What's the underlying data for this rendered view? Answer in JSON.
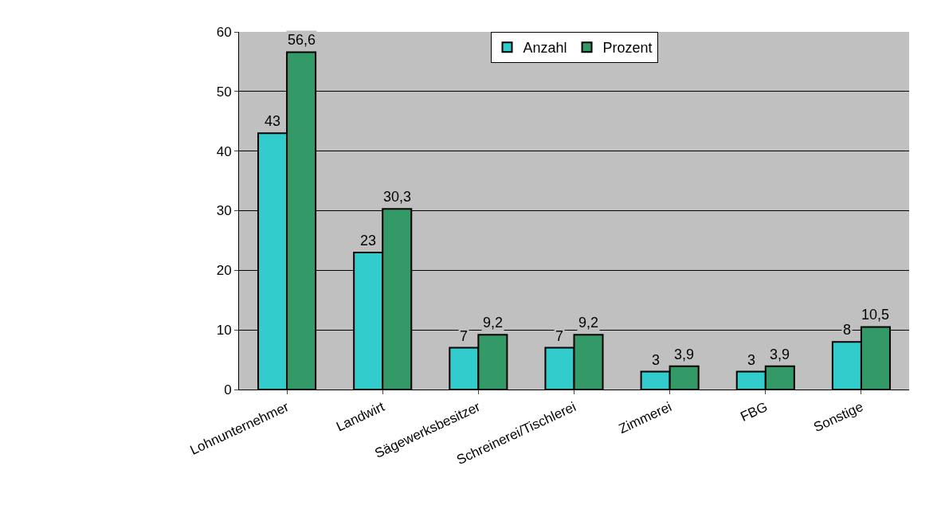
{
  "chart_data": {
    "type": "bar",
    "categories": [
      "Lohnunternehmer",
      "Landwirt",
      "Sägewerksbesitzer",
      "Schreinerei/Tischlerei",
      "Zimmerei",
      "FBG",
      "Sonstige"
    ],
    "series": [
      {
        "name": "Anzahl",
        "color": "#33cccc",
        "values": [
          43,
          23,
          7,
          7,
          3,
          3,
          8
        ],
        "value_labels": [
          "43",
          "23",
          "7",
          "7",
          "3",
          "3",
          "8"
        ]
      },
      {
        "name": "Prozent",
        "color": "#339966",
        "values": [
          56.6,
          30.3,
          9.2,
          9.2,
          3.9,
          3.9,
          10.5
        ],
        "value_labels": [
          "56,6",
          "30,3",
          "9,2",
          "9,2",
          "3,9",
          "3,9",
          "10,5"
        ]
      }
    ],
    "ylim": [
      0,
      60
    ],
    "yticks": [
      0,
      10,
      20,
      30,
      40,
      50,
      60
    ],
    "grid": "y",
    "legend": "top"
  }
}
